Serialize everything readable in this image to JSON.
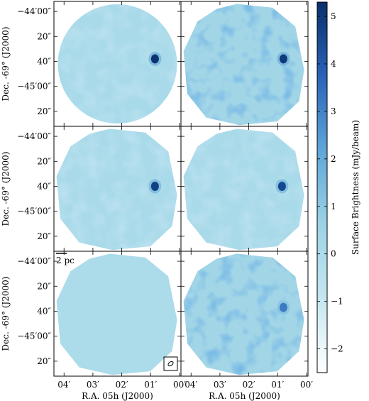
{
  "chart_data": {
    "type": "heatmap",
    "layout": {
      "rows": 3,
      "cols": 2
    },
    "x_axis": {
      "label": "R.A. 05h (J2000)",
      "tick_labels": [
        "04′",
        "03′",
        "02′",
        "01′",
        "00′"
      ]
    },
    "y_axis": {
      "label": "Dec. -69° (J2000)",
      "tick_labels": [
        "−44′00″",
        "20″",
        "40″",
        "−45′00″",
        "20″"
      ]
    },
    "colorbar": {
      "label": "Surface Brightness (mJy/beam)",
      "range": [
        -2.5,
        5.3
      ],
      "ticks": [
        -2,
        -1,
        0,
        1,
        2,
        3,
        4,
        5
      ],
      "tick_labels": [
        "−2",
        "−1",
        "0",
        "1",
        "2",
        "3",
        "4",
        "5"
      ],
      "colors": [
        "#ffffff",
        "#c4e7f0",
        "#9cd3e6",
        "#5fa6d8",
        "#2a63b8",
        "#08306b"
      ]
    },
    "panels": [
      {
        "id": "top-left",
        "footprint": "circle",
        "background_level": 0.1,
        "noise_level": 0.15,
        "sources": [
          {
            "ra_offset_arcmin": 0.85,
            "dec_offset_arcsec": 38,
            "peak": 5.2
          }
        ]
      },
      {
        "id": "top-right",
        "footprint": "polygon",
        "background_level": 0.4,
        "noise_level": 1.0,
        "sources": [
          {
            "ra_offset_arcmin": 0.8,
            "dec_offset_arcsec": 38,
            "peak": 5.0
          }
        ]
      },
      {
        "id": "middle-left",
        "footprint": "polygon",
        "background_level": 0.1,
        "noise_level": 0.15,
        "sources": [
          {
            "ra_offset_arcmin": 0.85,
            "dec_offset_arcsec": 40,
            "peak": 4.8
          }
        ]
      },
      {
        "id": "middle-right",
        "footprint": "polygon",
        "background_level": 0.1,
        "noise_level": 0.15,
        "sources": [
          {
            "ra_offset_arcmin": 0.85,
            "dec_offset_arcsec": 40,
            "peak": 4.6
          }
        ]
      },
      {
        "id": "bottom-left",
        "footprint": "polygon",
        "background_level": 0.0,
        "noise_level": 0.0,
        "scale_bar_label": "2 pc",
        "has_beam": true,
        "sources": []
      },
      {
        "id": "bottom-right",
        "footprint": "polygon",
        "background_level": 0.4,
        "noise_level": 1.0,
        "sources": [
          {
            "ra_offset_arcmin": 0.8,
            "dec_offset_arcsec": 37,
            "peak": 3.2
          }
        ]
      }
    ]
  }
}
